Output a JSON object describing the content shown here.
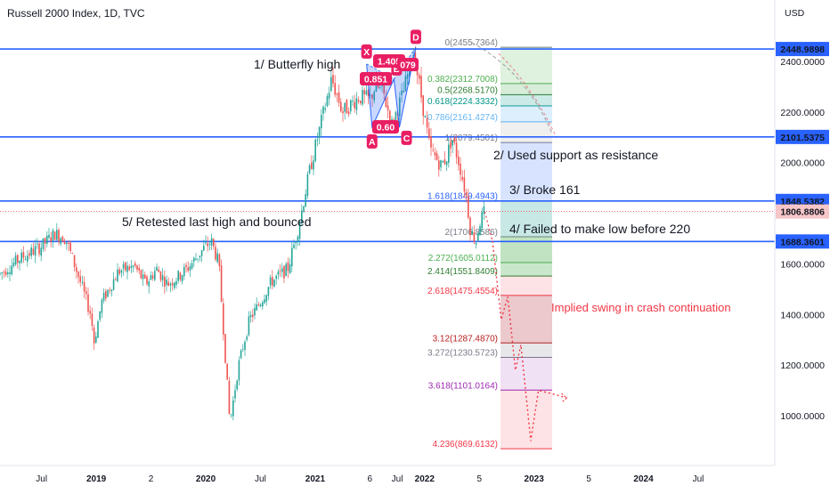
{
  "header": {
    "title": "Russell 2000 Index, 1D, TVC",
    "currency": "USD"
  },
  "colors": {
    "up": "#26a69a",
    "down": "#ef5350",
    "level_line": "#2962ff",
    "harmonic": "#e91e63",
    "implied_path": "#f23645",
    "last_price": "#f23645"
  },
  "annotations": {
    "butterfly": "1/  Butterfly high",
    "resistance": "2/  Used support as resistance",
    "broke": "3/  Broke 161",
    "failed": "4/  Failed to make low before 220",
    "retested": "5/  Retested last high and bounced",
    "implied": "Implied swing in crash continuation"
  },
  "harmonic_labels": {
    "X": "X",
    "A": "A",
    "B": "B",
    "C": "C",
    "D": "D",
    "r1": "0.851",
    "r2": "1.405",
    "r3": "0.60",
    "r4": "079"
  },
  "chart_data": {
    "type": "candlestick",
    "title": "Russell 2000 Index, 1D, TVC",
    "y_axis": {
      "ticks": [
        {
          "value": 2400,
          "label": "2400.0000"
        },
        {
          "value": 2200,
          "label": "2200.0000"
        },
        {
          "value": 2000,
          "label": "2000.0000"
        },
        {
          "value": 1600,
          "label": "1600.0000"
        },
        {
          "value": 1400,
          "label": "1400.0000"
        },
        {
          "value": 1200,
          "label": "1200.0000"
        },
        {
          "value": 1000,
          "label": "1000.0000"
        }
      ],
      "range": [
        820,
        2640
      ],
      "unit": "USD"
    },
    "x_axis": {
      "ticks": [
        {
          "label": "Jul",
          "t": 2018.5
        },
        {
          "label": "2019",
          "t": 2019.0
        },
        {
          "label": "2",
          "t": 2019.5
        },
        {
          "label": "2020",
          "t": 2020.0
        },
        {
          "label": "Jul",
          "t": 2020.5
        },
        {
          "label": "2021",
          "t": 2021.0
        },
        {
          "label": "6",
          "t": 2021.5
        },
        {
          "label": "Jul",
          "t": 2021.75
        },
        {
          "label": "2022",
          "t": 2022.0
        },
        {
          "label": "5",
          "t": 2022.5
        },
        {
          "label": "2023",
          "t": 2023.0
        },
        {
          "label": "5",
          "t": 2023.5
        },
        {
          "label": "2024",
          "t": 2024.0
        },
        {
          "label": "Jul",
          "t": 2024.5
        }
      ],
      "range": [
        2018.12,
        2025.2
      ]
    },
    "price_path": [
      [
        2018.12,
        1560
      ],
      [
        2018.3,
        1620
      ],
      [
        2018.5,
        1670
      ],
      [
        2018.62,
        1720
      ],
      [
        2018.72,
        1700
      ],
      [
        2018.83,
        1560
      ],
      [
        2018.95,
        1400
      ],
      [
        2018.98,
        1290
      ],
      [
        2019.05,
        1450
      ],
      [
        2019.2,
        1570
      ],
      [
        2019.35,
        1590
      ],
      [
        2019.45,
        1520
      ],
      [
        2019.55,
        1580
      ],
      [
        2019.65,
        1520
      ],
      [
        2019.75,
        1550
      ],
      [
        2019.85,
        1590
      ],
      [
        2019.98,
        1660
      ],
      [
        2020.05,
        1690
      ],
      [
        2020.12,
        1600
      ],
      [
        2020.2,
        1100
      ],
      [
        2020.22,
        970
      ],
      [
        2020.3,
        1200
      ],
      [
        2020.4,
        1380
      ],
      [
        2020.5,
        1450
      ],
      [
        2020.6,
        1530
      ],
      [
        2020.75,
        1580
      ],
      [
        2020.85,
        1750
      ],
      [
        2020.95,
        1970
      ],
      [
        2021.05,
        2150
      ],
      [
        2021.15,
        2330
      ],
      [
        2021.25,
        2200
      ],
      [
        2021.4,
        2260
      ],
      [
        2021.5,
        2250
      ],
      [
        2021.55,
        2300
      ],
      [
        2021.62,
        2280
      ],
      [
        2021.7,
        2150
      ],
      [
        2021.8,
        2270
      ],
      [
        2021.9,
        2440
      ],
      [
        2021.97,
        2260
      ],
      [
        2022.05,
        2050
      ],
      [
        2022.15,
        1990
      ],
      [
        2022.2,
        2020
      ],
      [
        2022.25,
        2100
      ],
      [
        2022.32,
        1990
      ],
      [
        2022.38,
        1870
      ],
      [
        2022.42,
        1730
      ],
      [
        2022.47,
        1690
      ],
      [
        2022.5,
        1760
      ],
      [
        2022.55,
        1810
      ]
    ],
    "last_price": 1806.8806,
    "levels": [
      {
        "price": 2448.9898,
        "label": "2448.9898"
      },
      {
        "price": 2101.5375,
        "label": "2101.5375"
      },
      {
        "price": 1848.5382,
        "label": "1848.5382"
      },
      {
        "price": 1688.3601,
        "label": "1688.3601"
      }
    ],
    "last_label": "1806.8806",
    "fib": [
      {
        "label": "0(2455.7364)",
        "price": 2455.7364,
        "color": "#787b86",
        "fill": "rgba(120,123,134,0.0)"
      },
      {
        "label": "0.382(2312.7008)",
        "price": 2312.7008,
        "color": "#4caf50",
        "fill": "rgba(76,175,80,0.18)"
      },
      {
        "label": "0.5(2268.5170)",
        "price": 2268.517,
        "color": "#2e7d32",
        "fill": "rgba(76,175,80,0.22)"
      },
      {
        "label": "0.618(2224.3332)",
        "price": 2224.3332,
        "color": "#009688",
        "fill": "rgba(0,150,136,0.20)"
      },
      {
        "label": "0.786(2161.4274)",
        "price": 2161.4274,
        "color": "#64b5f6",
        "fill": "rgba(100,181,246,0.22)"
      },
      {
        "label": "1(2079.4501)",
        "price": 2079.4501,
        "color": "#787b86",
        "fill": "rgba(120,123,134,0.12)"
      },
      {
        "label": "1.618(1849.4943)",
        "price": 1849.4943,
        "color": "#2962ff",
        "fill": "rgba(41,98,255,0.18)"
      },
      {
        "label": "2(1706.8586)",
        "price": 1706.8586,
        "color": "#787b86",
        "fill": "rgba(0,150,136,0.22)"
      },
      {
        "label": "2.272(1605.0112)",
        "price": 1605.0112,
        "color": "#4caf50",
        "fill": "rgba(76,175,80,0.35)"
      },
      {
        "label": "2.414(1551.8409)",
        "price": 1551.8409,
        "color": "#2e7d32",
        "fill": "rgba(76,175,80,0.30)"
      },
      {
        "label": "2.618(1475.4554)",
        "price": 1475.4554,
        "color": "#f23645",
        "fill": "rgba(242,54,69,0.14)"
      },
      {
        "label": "3.12(1287.4870)",
        "price": 1287.487,
        "color": "#b71c1c",
        "fill": "rgba(178,40,51,0.25)"
      },
      {
        "label": "3.272(1230.5723)",
        "price": 1230.5723,
        "color": "#787b86",
        "fill": "rgba(120,123,134,0.18)"
      },
      {
        "label": "3.618(1101.0164)",
        "price": 1101.0164,
        "color": "#9c27b0",
        "fill": "rgba(156,39,176,0.14)"
      },
      {
        "label": "4.236(869.6132)",
        "price": 869.6132,
        "color": "#f23645",
        "fill": "rgba(242,54,69,0.14)"
      }
    ],
    "harmonic_points": [
      {
        "name": "X",
        "t": 2021.47,
        "price": 2390
      },
      {
        "name": "A",
        "t": 2021.52,
        "price": 2140
      },
      {
        "name": "B",
        "t": 2021.72,
        "price": 2330
      },
      {
        "name": "C",
        "t": 2021.77,
        "price": 2140
      },
      {
        "name": "D",
        "t": 2021.92,
        "price": 2455
      }
    ],
    "implied_path": [
      [
        2022.62,
        1690
      ],
      [
        2022.7,
        1380
      ],
      [
        2022.76,
        1470
      ],
      [
        2022.83,
        1180
      ],
      [
        2022.88,
        1280
      ],
      [
        2022.97,
        900
      ],
      [
        2023.04,
        1100
      ],
      [
        2023.18,
        1085
      ],
      [
        2023.3,
        1070
      ]
    ]
  }
}
